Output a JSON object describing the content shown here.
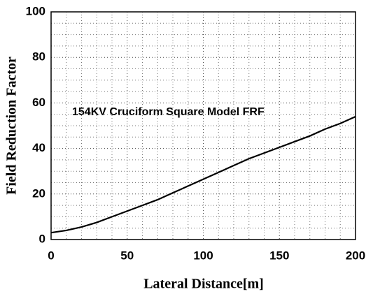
{
  "chart_data": {
    "type": "line",
    "annotation": "154KV Cruciform Square Model FRF",
    "x_label": "Lateral Distance[m]",
    "y_label": "Field Reduction Factor",
    "x": [
      0,
      10,
      20,
      30,
      40,
      50,
      60,
      70,
      80,
      90,
      100,
      110,
      120,
      130,
      140,
      150,
      160,
      170,
      180,
      190,
      200
    ],
    "series": [
      {
        "color": "#000000",
        "values": [
          3,
          4,
          5.5,
          7.5,
          10,
          12.5,
          15,
          17.5,
          20.5,
          23.5,
          26.5,
          29.5,
          32.5,
          35.5,
          38,
          40.5,
          43,
          45.5,
          48.5,
          51,
          54
        ]
      }
    ],
    "xlim": [
      0,
      200
    ],
    "xticks": [
      0,
      50,
      100,
      150,
      200
    ],
    "ylim": [
      0,
      100
    ],
    "yticks": [
      0,
      20,
      40,
      60,
      80,
      100
    ],
    "minor_xticks": [
      10,
      20,
      30,
      40,
      60,
      70,
      80,
      90,
      110,
      120,
      130,
      140,
      160,
      170,
      180,
      190
    ],
    "minor_yticks": [
      5,
      10,
      15,
      25,
      30,
      35,
      45,
      50,
      55,
      65,
      70,
      75,
      85,
      90,
      95
    ],
    "grid": true
  }
}
